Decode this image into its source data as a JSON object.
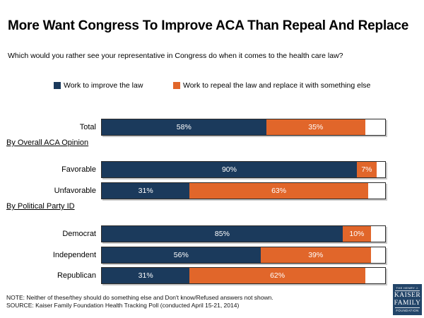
{
  "title": "More Want Congress To Improve ACA Than Repeal And Replace",
  "subtitle": "Which would you rather see your representative in Congress do when it comes to the health care law?",
  "colors": {
    "improve": "#1B3A5C",
    "repeal": "#E1662A",
    "logo_bg": "#234569",
    "bar_border": "#2B2B2B"
  },
  "legend": [
    {
      "label": "Work to improve the law",
      "color": "#1B3A5C"
    },
    {
      "label": "Work to repeal the law and replace it with something else",
      "color": "#E1662A"
    }
  ],
  "chart_data": {
    "type": "bar",
    "orientation": "horizontal",
    "stacked": true,
    "xlim": [
      0,
      100
    ],
    "grid": false,
    "legend_position": "top",
    "categories": [
      "Total",
      "Favorable",
      "Unfavorable",
      "Democrat",
      "Independent",
      "Republican"
    ],
    "series": [
      {
        "name": "Work to improve the law",
        "color": "#1B3A5C",
        "values": [
          58,
          90,
          31,
          85,
          56,
          31
        ]
      },
      {
        "name": "Work to repeal the law and replace it with something else",
        "color": "#E1662A",
        "values": [
          35,
          7,
          63,
          10,
          39,
          62
        ]
      }
    ],
    "data_labels": {
      "improve": [
        "58%",
        "90%",
        "31%",
        "85%",
        "56%",
        "31%"
      ],
      "repeal": [
        "35%",
        "7%",
        "63%",
        "10%",
        "39%",
        "62%"
      ]
    },
    "sections": [
      {
        "label": "By Overall ACA Opinion",
        "applies_to": [
          "Favorable",
          "Unfavorable"
        ]
      },
      {
        "label": "By Political Party ID",
        "applies_to": [
          "Democrat",
          "Independent",
          "Republican"
        ]
      }
    ]
  },
  "footer": {
    "note": "NOTE: Neither of these/they should do something else and Don't know/Refused answers not shown.",
    "source": "SOURCE: Kaiser Family Foundation Health Tracking Poll (conducted April 15-21, 2014)"
  },
  "logo": {
    "line1": "THE HENRY J.",
    "line2": "KAISER",
    "line3": "FAMILY",
    "line4": "FOUNDATION"
  }
}
